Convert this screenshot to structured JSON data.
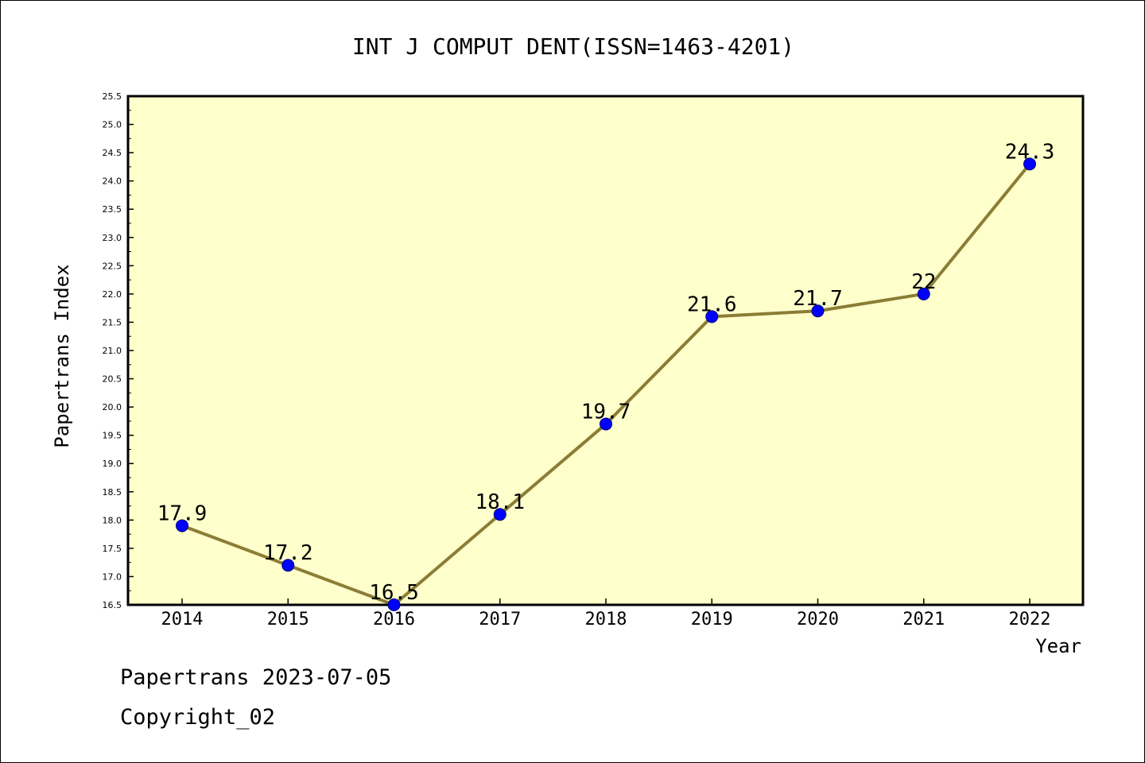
{
  "chart_data": {
    "type": "line",
    "title": "INT J COMPUT DENT(ISSN=1463-4201)",
    "xlabel": "Year",
    "ylabel": "Papertrans Index",
    "categories": [
      "2014",
      "2015",
      "2016",
      "2017",
      "2018",
      "2019",
      "2020",
      "2021",
      "2022"
    ],
    "series": [
      {
        "values": [
          17.9,
          17.2,
          16.5,
          18.1,
          19.7,
          21.6,
          21.7,
          22.0,
          24.3
        ],
        "point_labels": [
          "17.9",
          "17.2",
          "16.5",
          "18.1",
          "19.7",
          "21.6",
          "21.7",
          "22",
          "24.3"
        ]
      }
    ],
    "ylim": [
      16.5,
      25.5
    ],
    "yticks": [
      16.5,
      17.0,
      17.5,
      18.0,
      18.5,
      19.0,
      19.5,
      20.0,
      20.5,
      21.0,
      21.5,
      22.0,
      22.5,
      23.0,
      23.5,
      24.0,
      24.5,
      25.0,
      25.5
    ],
    "ytick_labels": [
      "16.5",
      "17.0",
      "17.5",
      "18.0",
      "18.5",
      "19.0",
      "19.5",
      "20.0",
      "20.5",
      "21.0",
      "21.5",
      "22.0",
      "22.5",
      "23.0",
      "23.5",
      "24.0",
      "24.5",
      "25.0",
      "25.5"
    ],
    "grid": false,
    "legend": "none"
  },
  "footer": {
    "source": "Papertrans 2023-07-05",
    "copyright": "Copyright_02"
  },
  "colors": {
    "plot_background": "#ffffcc",
    "line": "#8b7d35",
    "marker": "#0000ff",
    "axis": "#000000"
  }
}
